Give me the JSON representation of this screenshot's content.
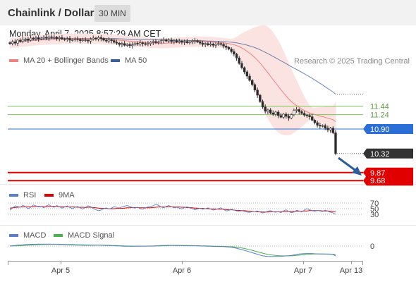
{
  "header": {
    "title": "Chainlink / Dollar",
    "timeframe": "30 MIN"
  },
  "datetime": "Monday, April 7, 2025 8:57:29 AM CET",
  "source": "Research © 2025 Trading Central",
  "colors": {
    "ma20": "#f08080",
    "bollinger_fill": "#fbe3e1",
    "ma50": "#3a5f9a",
    "resistance": "#7cc15a",
    "pivot": "#2b6fd6",
    "support": "#e00000",
    "last_price_tag": "#333333",
    "rsi": "#5b7fc7",
    "rsi_9ma": "#e00000",
    "macd": "#5b7fc7",
    "macd_signal": "#4caf50",
    "arrow": "#2a5e9c"
  },
  "chart_data": [
    {
      "type": "candlestick",
      "title": "",
      "legend": [
        {
          "name": "MA 20 + Bollinger Bands",
          "color": "#f08080"
        },
        {
          "name": "MA 50",
          "color": "#3a5f9a"
        }
      ],
      "x_ticks": [
        "Apr 5",
        "Apr 6",
        "Apr 7",
        "Apr 13"
      ],
      "ylim": [
        9.4,
        13.6
      ],
      "price_levels": [
        {
          "label": "11.44",
          "value": 11.44,
          "kind": "resistance"
        },
        {
          "label": "11.24",
          "value": 11.24,
          "kind": "resistance"
        },
        {
          "label": "10.90",
          "value": 10.9,
          "kind": "pivot"
        },
        {
          "label": "10.32",
          "value": 10.32,
          "kind": "last"
        },
        {
          "label": "9.87",
          "value": 9.87,
          "kind": "support"
        },
        {
          "label": "9.68",
          "value": 9.68,
          "kind": "support"
        }
      ],
      "close": [
        12.92,
        12.96,
        12.93,
        13.0,
        12.97,
        13.02,
        13.03,
        13.0,
        13.05,
        13.04,
        13.06,
        13.03,
        13.05,
        13.07,
        13.05,
        13.08,
        13.06,
        13.07,
        13.04,
        13.06,
        13.03,
        13.02,
        13.04,
        13.0,
        13.01,
        13.03,
        13.02,
        12.99,
        13.01,
        13.0,
        12.98,
        13.02,
        13.05,
        13.03,
        13.06,
        13.04,
        13.0,
        12.98,
        13.01,
        12.99,
        12.95,
        12.93,
        12.9,
        12.92,
        12.88,
        12.9,
        12.87,
        12.89,
        12.93,
        12.91,
        12.94,
        12.92,
        12.9,
        12.92,
        12.95,
        12.97,
        12.94,
        12.96,
        12.99,
        13.01,
        12.98,
        13.0,
        12.97,
        12.99,
        12.96,
        12.98,
        12.95,
        12.97,
        12.94,
        12.96,
        12.98,
        12.99,
        12.96,
        12.93,
        12.9,
        12.92,
        12.89,
        12.91,
        12.88,
        12.9,
        12.92,
        12.9,
        12.86,
        12.83,
        12.79,
        12.73,
        12.67,
        12.58,
        12.45,
        12.35,
        12.25,
        12.15,
        12.05,
        11.95,
        11.82,
        11.7,
        11.55,
        11.42,
        11.32,
        11.35,
        11.28,
        11.25,
        11.3,
        11.22,
        11.18,
        11.25,
        11.2,
        11.16,
        11.24,
        11.34,
        11.36,
        11.31,
        11.27,
        11.23,
        11.22,
        11.19,
        11.11,
        11.05,
        10.99,
        10.97,
        10.98,
        10.92,
        10.88,
        10.92,
        10.81,
        10.32
      ]
    },
    {
      "type": "line",
      "title": "RSI",
      "legend": [
        {
          "name": "RSI",
          "color": "#5b7fc7"
        },
        {
          "name": "9MA",
          "color": "#e00000"
        }
      ],
      "ylim": [
        0,
        100
      ],
      "levels": [
        70,
        50,
        30
      ],
      "series": [
        {
          "name": "RSI",
          "values": [
            45,
            52,
            60,
            58,
            55,
            62,
            57,
            50,
            55,
            63,
            60,
            56,
            59,
            53,
            60,
            64,
            58,
            55,
            61,
            57,
            52,
            56,
            60,
            54,
            50,
            55,
            58,
            53,
            49,
            55,
            60,
            57,
            51,
            46,
            43,
            45,
            50,
            53,
            49,
            52,
            57,
            55,
            52,
            56,
            59,
            61,
            58,
            54,
            52,
            55,
            50,
            48,
            53,
            56,
            58,
            60,
            66,
            62,
            56,
            53,
            58,
            61,
            57,
            53,
            55,
            52,
            49,
            54,
            57,
            53,
            50,
            46,
            49,
            52,
            48,
            50,
            53,
            49,
            45,
            47,
            50,
            53,
            47,
            42,
            44,
            48,
            45,
            42,
            41,
            43,
            40,
            38,
            37,
            39,
            40,
            42,
            38,
            35,
            37,
            41,
            43,
            39,
            37,
            40,
            36,
            42,
            46,
            40,
            36,
            38,
            44,
            42,
            39,
            45,
            50,
            46,
            43,
            41,
            44,
            42,
            40,
            45,
            41,
            38,
            35,
            30
          ]
        },
        {
          "name": "9MA",
          "values": [
            52,
            53,
            54,
            55,
            56,
            56,
            57,
            57,
            57,
            57,
            58,
            58,
            58,
            57,
            57,
            58,
            58,
            58,
            58,
            57,
            57,
            57,
            57,
            56,
            56,
            56,
            55,
            55,
            55,
            54,
            55,
            55,
            54,
            53,
            52,
            51,
            51,
            51,
            50,
            50,
            50,
            51,
            51,
            51,
            52,
            53,
            53,
            54,
            54,
            54,
            53,
            53,
            53,
            53,
            53,
            54,
            55,
            56,
            56,
            56,
            56,
            57,
            57,
            56,
            56,
            56,
            55,
            55,
            54,
            54,
            53,
            52,
            52,
            51,
            51,
            50,
            50,
            49,
            49,
            49,
            48,
            48,
            48,
            47,
            46,
            46,
            45,
            44,
            44,
            43,
            43,
            42,
            41,
            40,
            40,
            39,
            39,
            38,
            38,
            38,
            39,
            39,
            39,
            39,
            39,
            40,
            40,
            40,
            40,
            40,
            41,
            41,
            41,
            42,
            42,
            43,
            43,
            43,
            43,
            43,
            42,
            42,
            42,
            41,
            40,
            39
          ]
        }
      ]
    },
    {
      "type": "line",
      "title": "MACD",
      "legend": [
        {
          "name": "MACD",
          "color": "#5b7fc7"
        },
        {
          "name": "MACD Signal",
          "color": "#4caf50"
        }
      ],
      "ylim": [
        -0.25,
        0.15
      ],
      "levels": [
        0
      ],
      "series": [
        {
          "name": "MACD",
          "values": [
            0.002,
            0.006,
            0.011,
            0.016,
            0.02,
            0.024,
            0.027,
            0.03,
            0.032,
            0.034,
            0.035,
            0.036,
            0.037,
            0.037,
            0.037,
            0.036,
            0.035,
            0.034,
            0.033,
            0.031,
            0.029,
            0.027,
            0.025,
            0.023,
            0.021,
            0.019,
            0.017,
            0.016,
            0.015,
            0.014,
            0.014,
            0.014,
            0.015,
            0.016,
            0.016,
            0.015,
            0.013,
            0.011,
            0.009,
            0.007,
            0.005,
            0.003,
            0.001,
            -0.001,
            -0.003,
            -0.004,
            -0.005,
            -0.005,
            -0.004,
            -0.003,
            -0.002,
            -0.001,
            -0.001,
            0.0,
            0.001,
            0.003,
            0.005,
            0.007,
            0.009,
            0.011,
            0.012,
            0.012,
            0.012,
            0.011,
            0.01,
            0.009,
            0.008,
            0.007,
            0.006,
            0.005,
            0.005,
            0.005,
            0.004,
            0.002,
            0.0,
            -0.002,
            -0.004,
            -0.006,
            -0.007,
            -0.008,
            -0.008,
            -0.009,
            -0.011,
            -0.014,
            -0.018,
            -0.024,
            -0.032,
            -0.042,
            -0.055,
            -0.068,
            -0.082,
            -0.096,
            -0.11,
            -0.125,
            -0.14,
            -0.155,
            -0.17,
            -0.183,
            -0.192,
            -0.196,
            -0.198,
            -0.199,
            -0.197,
            -0.196,
            -0.195,
            -0.19,
            -0.186,
            -0.184,
            -0.178,
            -0.168,
            -0.158,
            -0.151,
            -0.147,
            -0.144,
            -0.142,
            -0.141,
            -0.142,
            -0.145,
            -0.148,
            -0.15,
            -0.15,
            -0.152,
            -0.154,
            -0.154,
            -0.158,
            -0.185
          ]
        },
        {
          "name": "MACD Signal",
          "values": [
            0.0,
            0.001,
            0.003,
            0.005,
            0.008,
            0.011,
            0.014,
            0.017,
            0.02,
            0.022,
            0.025,
            0.027,
            0.029,
            0.03,
            0.032,
            0.033,
            0.033,
            0.034,
            0.034,
            0.034,
            0.033,
            0.032,
            0.031,
            0.03,
            0.029,
            0.027,
            0.026,
            0.024,
            0.023,
            0.021,
            0.02,
            0.019,
            0.018,
            0.018,
            0.017,
            0.017,
            0.016,
            0.015,
            0.014,
            0.012,
            0.011,
            0.009,
            0.007,
            0.005,
            0.003,
            0.002,
            0.0,
            -0.001,
            -0.002,
            -0.002,
            -0.002,
            -0.002,
            -0.002,
            -0.001,
            -0.001,
            0.0,
            0.001,
            0.002,
            0.004,
            0.005,
            0.006,
            0.008,
            0.009,
            0.009,
            0.01,
            0.01,
            0.01,
            0.009,
            0.009,
            0.008,
            0.008,
            0.007,
            0.006,
            0.005,
            0.004,
            0.003,
            0.002,
            0.0,
            -0.001,
            -0.003,
            -0.004,
            -0.005,
            -0.006,
            -0.008,
            -0.01,
            -0.012,
            -0.016,
            -0.021,
            -0.028,
            -0.036,
            -0.046,
            -0.057,
            -0.069,
            -0.081,
            -0.094,
            -0.108,
            -0.121,
            -0.135,
            -0.147,
            -0.157,
            -0.165,
            -0.172,
            -0.177,
            -0.181,
            -0.184,
            -0.186,
            -0.186,
            -0.186,
            -0.185,
            -0.182,
            -0.177,
            -0.172,
            -0.167,
            -0.162,
            -0.158,
            -0.155,
            -0.152,
            -0.151,
            -0.15,
            -0.15,
            -0.15,
            -0.15,
            -0.151,
            -0.152,
            -0.153,
            -0.16
          ]
        }
      ]
    }
  ]
}
